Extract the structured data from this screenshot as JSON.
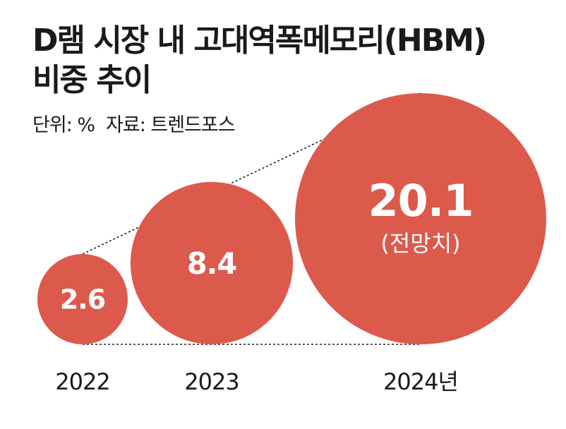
{
  "title": {
    "line1": "D램 시장 내 고대역폭메모리(HBM)",
    "line2": "비중 추이"
  },
  "unit_label": "단위: %",
  "source_label": "자료: 트렌드포스",
  "colors": {
    "bubble": "#dc5a4c",
    "bubble_text": "#ffffff",
    "text": "#1a1a1a",
    "guide_line": "#222222"
  },
  "chart_data": {
    "type": "bubble",
    "categories": [
      "2022",
      "2023",
      "2024년"
    ],
    "values": [
      2.6,
      8.4,
      20.1
    ],
    "value_labels": [
      "2.6",
      "8.4",
      "20.1"
    ],
    "annotations": [
      "",
      "",
      "(전망치)"
    ],
    "title": "D램 시장 내 고대역폭메모리(HBM) 비중 추이",
    "unit": "%",
    "source": "트렌드포스"
  }
}
